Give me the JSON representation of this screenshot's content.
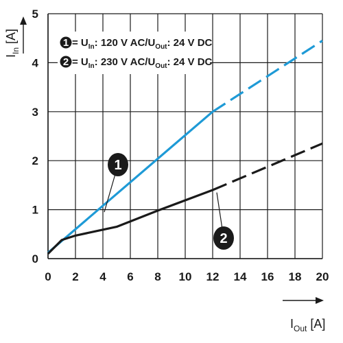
{
  "chart_data": {
    "type": "line",
    "xlim": [
      0,
      20
    ],
    "ylim": [
      0,
      5
    ],
    "x_ticks": [
      0,
      2,
      4,
      6,
      8,
      10,
      12,
      14,
      16,
      18,
      20
    ],
    "y_ticks": [
      0,
      1,
      2,
      3,
      4,
      5
    ],
    "grid": true,
    "xlabel": {
      "main": "I",
      "sub": "Out",
      "unit": " [A]"
    },
    "ylabel": {
      "main": "I",
      "sub": "In",
      "unit": " [A]"
    },
    "legend_position": "top-left",
    "series": [
      {
        "id": "1",
        "color": "#1e9ad6",
        "legend": {
          "number": "1",
          "prefix": " = U",
          "sub_in": "In",
          "mid": ": 120 V AC/U",
          "sub_out": "Out",
          "suffix": ": 24 V DC"
        },
        "solid": [
          [
            0,
            0.12
          ],
          [
            12,
            3.0
          ]
        ],
        "dashed": [
          [
            12,
            3.0
          ],
          [
            20,
            4.45
          ]
        ],
        "callout": {
          "label": "1",
          "at": [
            4.1,
            0.95
          ]
        }
      },
      {
        "id": "2",
        "color": "#1a1a1a",
        "legend": {
          "number": "2",
          "prefix": " = U",
          "sub_in": "In",
          "mid": ": 230 V AC/U",
          "sub_out": "Out",
          "suffix": ": 24 V DC"
        },
        "solid": [
          [
            0,
            0.1
          ],
          [
            1,
            0.38
          ],
          [
            2,
            0.47
          ],
          [
            5,
            0.65
          ],
          [
            8,
            0.98
          ],
          [
            12,
            1.4
          ]
        ],
        "dashed": [
          [
            12,
            1.4
          ],
          [
            20,
            2.35
          ]
        ],
        "callout": {
          "label": "2",
          "at": [
            12.3,
            1.35
          ]
        }
      }
    ]
  }
}
